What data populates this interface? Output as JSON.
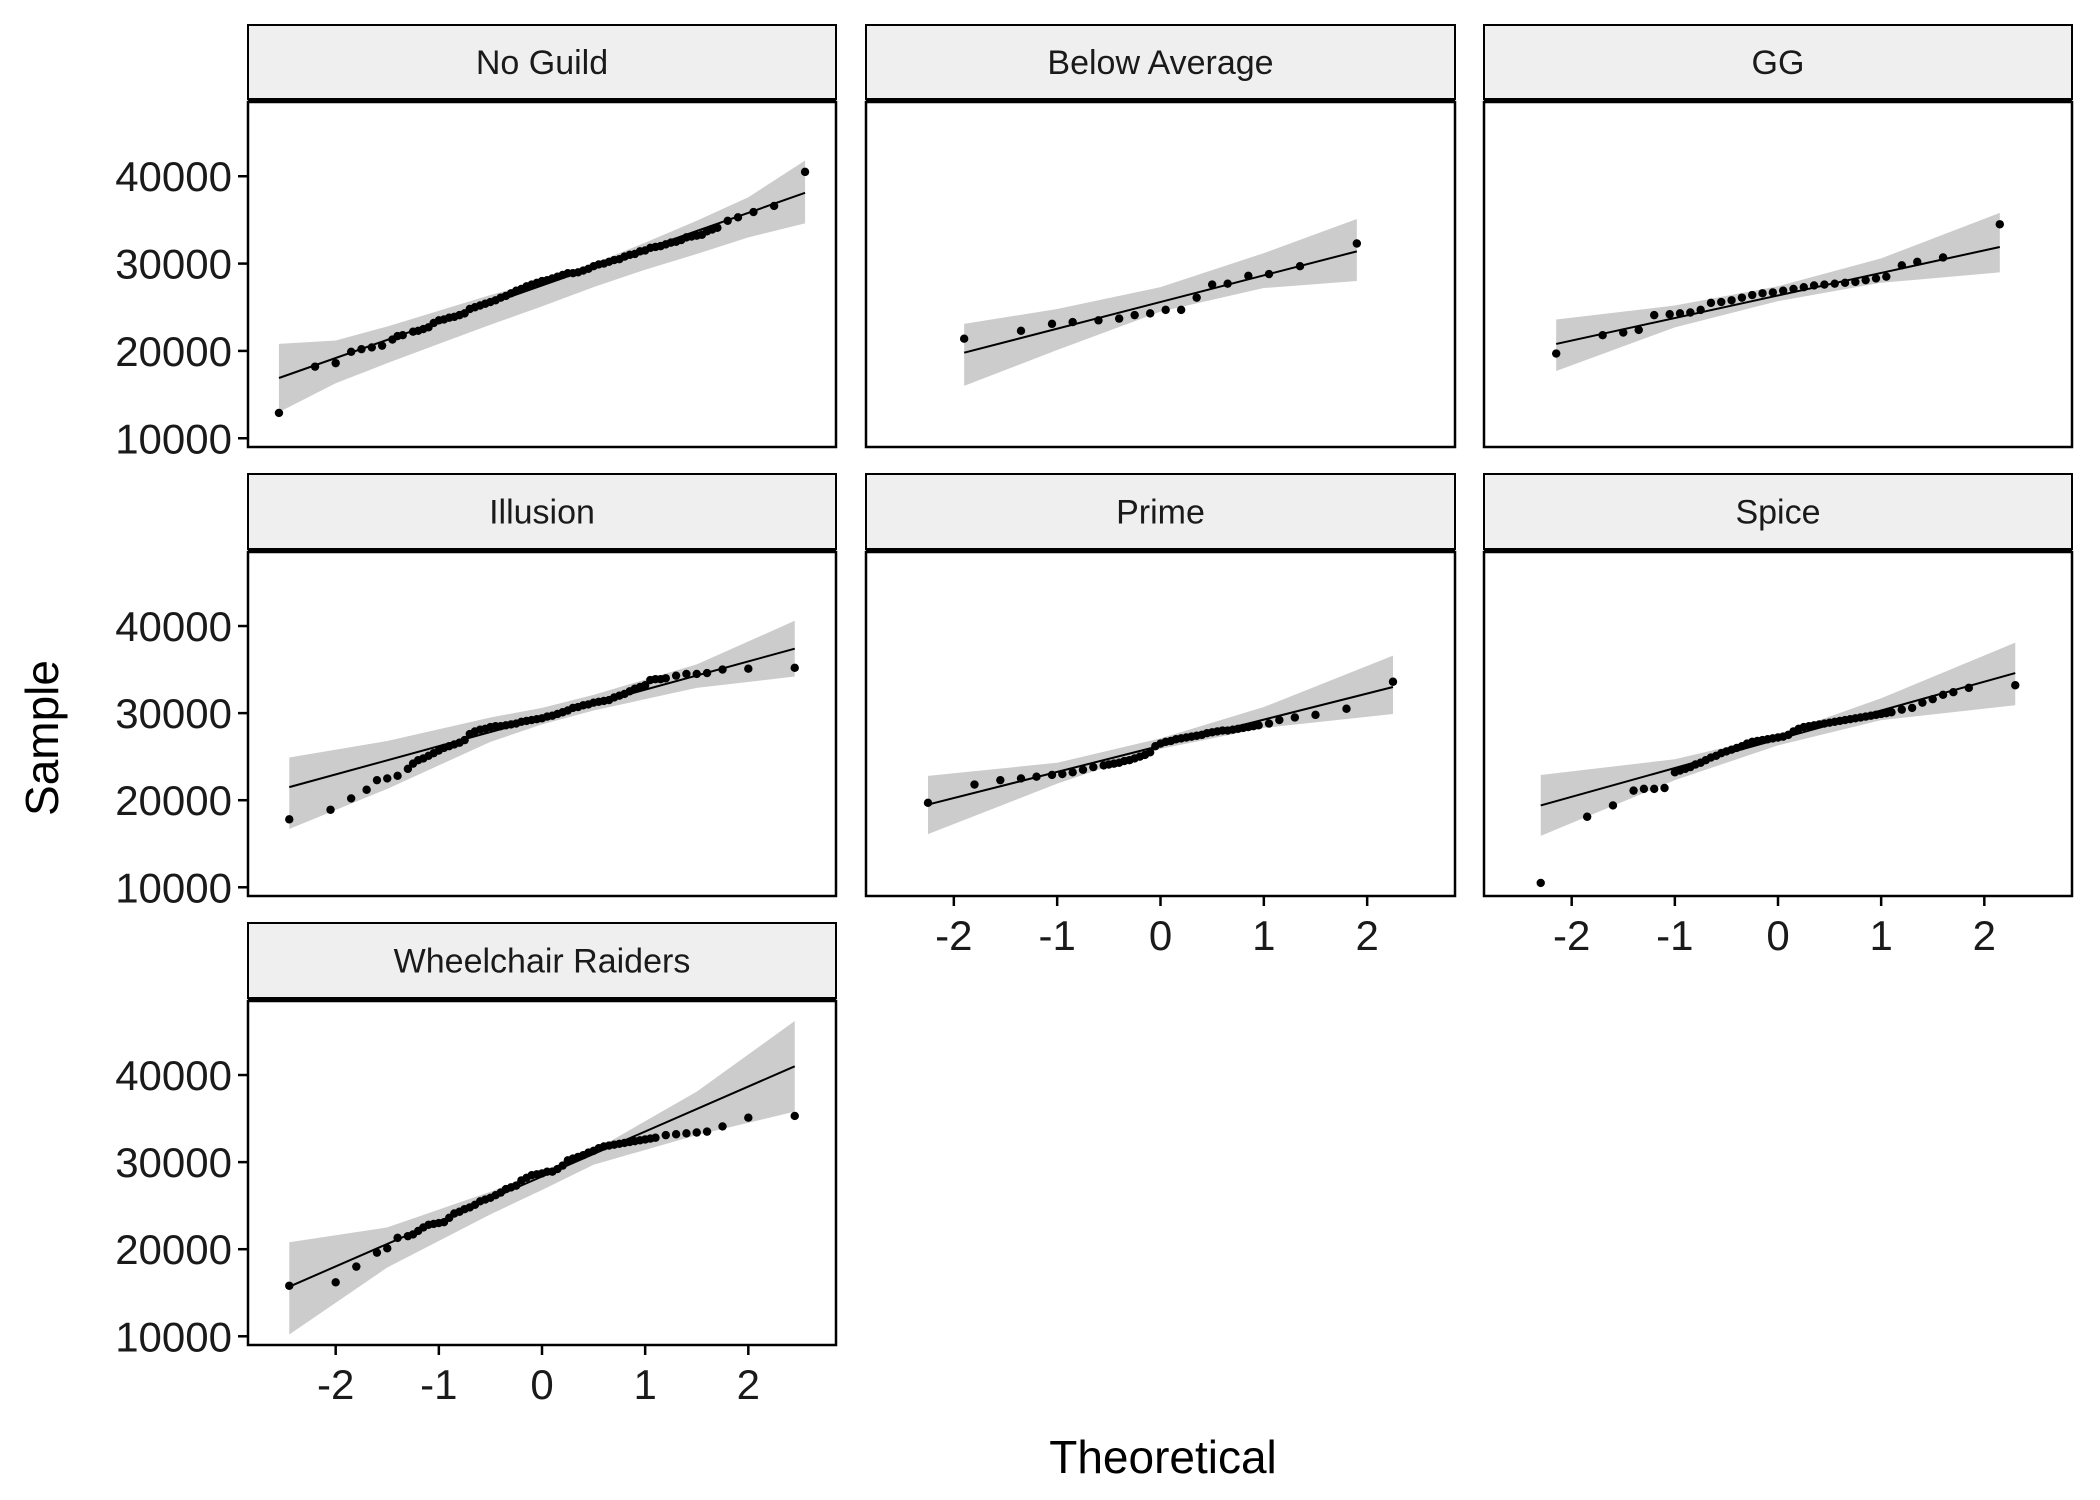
{
  "chart_data": {
    "type": "scatter",
    "subtype": "qq-plot-faceted",
    "xlabel": "Theoretical",
    "ylabel": "Sample",
    "xlim": [
      -2.85,
      2.85
    ],
    "ylim": [
      9000,
      48500
    ],
    "x_ticks": [
      -2,
      -1,
      0,
      1,
      2
    ],
    "x_tick_labels": [
      "-2",
      "-1",
      "0",
      "1",
      "2"
    ],
    "y_ticks": [
      10000,
      20000,
      30000,
      40000
    ],
    "y_tick_labels": [
      "10000",
      "20000",
      "30000",
      "40000"
    ],
    "colors": {
      "points": "#000000",
      "line": "#000000",
      "band": "#cccccc",
      "strip": "#efefef",
      "frame": "#000000"
    },
    "panels": [
      {
        "name": "No Guild",
        "line": {
          "x": [
            -2.55,
            2.55
          ],
          "y": [
            16900,
            38100
          ]
        },
        "band": {
          "x": [
            -2.55,
            -2.0,
            -1.5,
            -1.0,
            -0.5,
            0.0,
            0.5,
            1.0,
            1.5,
            2.0,
            2.55
          ],
          "lower": [
            13000,
            16300,
            18600,
            20800,
            23000,
            25100,
            27300,
            29300,
            31100,
            33000,
            34600
          ],
          "upper": [
            20800,
            21200,
            22800,
            24600,
            26400,
            28000,
            30000,
            32400,
            34900,
            37600,
            41800
          ]
        },
        "points": {
          "x": [
            -2.55,
            -2.2,
            -2.0,
            -1.85,
            -1.75,
            -1.65,
            -1.55,
            -1.45,
            -1.4,
            -1.35,
            -1.25,
            -1.2,
            -1.15,
            -1.1,
            -1.05,
            -1.0,
            -0.95,
            -0.9,
            -0.85,
            -0.8,
            -0.75,
            -0.7,
            -0.65,
            -0.6,
            -0.55,
            -0.5,
            -0.45,
            -0.4,
            -0.35,
            -0.3,
            -0.25,
            -0.2,
            -0.15,
            -0.1,
            -0.05,
            0.0,
            0.05,
            0.1,
            0.15,
            0.2,
            0.25,
            0.3,
            0.35,
            0.4,
            0.45,
            0.5,
            0.55,
            0.6,
            0.65,
            0.7,
            0.75,
            0.8,
            0.85,
            0.9,
            0.95,
            1.0,
            1.05,
            1.1,
            1.15,
            1.2,
            1.25,
            1.3,
            1.35,
            1.4,
            1.45,
            1.5,
            1.55,
            1.6,
            1.65,
            1.7,
            1.8,
            1.9,
            2.05,
            2.25,
            2.55
          ],
          "y": [
            12900,
            18200,
            18600,
            19900,
            20200,
            20400,
            20600,
            21300,
            21700,
            21800,
            22200,
            22300,
            22500,
            22700,
            23200,
            23500,
            23600,
            23800,
            23900,
            24100,
            24300,
            24800,
            25000,
            25200,
            25400,
            25600,
            25800,
            26100,
            26300,
            26600,
            26900,
            27100,
            27400,
            27600,
            27800,
            28000,
            28100,
            28300,
            28500,
            28700,
            28900,
            28900,
            29000,
            29200,
            29400,
            29700,
            29900,
            30000,
            30200,
            30400,
            30500,
            30800,
            31000,
            31100,
            31400,
            31500,
            31800,
            31900,
            32000,
            32200,
            32400,
            32500,
            32700,
            33000,
            33100,
            33200,
            33300,
            33700,
            33900,
            34100,
            34900,
            35300,
            35900,
            36600,
            40500
          ]
        }
      },
      {
        "name": "Below Average",
        "line": {
          "x": [
            -1.9,
            1.9
          ],
          "y": [
            19800,
            31400
          ]
        },
        "band": {
          "x": [
            -1.9,
            -1.0,
            0.0,
            1.0,
            1.9
          ],
          "lower": [
            16000,
            20100,
            24500,
            27200,
            28000
          ],
          "upper": [
            23100,
            24800,
            27300,
            31200,
            35100
          ]
        },
        "points": {
          "x": [
            -1.9,
            -1.35,
            -1.05,
            -0.85,
            -0.6,
            -0.4,
            -0.25,
            -0.1,
            0.05,
            0.2,
            0.35,
            0.5,
            0.65,
            0.85,
            1.05,
            1.35,
            1.9
          ],
          "y": [
            21400,
            22300,
            23100,
            23300,
            23500,
            23700,
            24100,
            24300,
            24700,
            24700,
            26100,
            27600,
            27700,
            28600,
            28800,
            29700,
            32300
          ]
        }
      },
      {
        "name": "GG",
        "line": {
          "x": [
            -2.15,
            2.15
          ],
          "y": [
            20800,
            31900
          ]
        },
        "band": {
          "x": [
            -2.15,
            -1.0,
            0.0,
            1.0,
            2.15
          ],
          "lower": [
            17700,
            22700,
            25700,
            27800,
            29000
          ],
          "upper": [
            23600,
            25200,
            27400,
            30600,
            35800
          ]
        },
        "points": {
          "x": [
            -2.15,
            -1.7,
            -1.5,
            -1.35,
            -1.2,
            -1.05,
            -0.95,
            -0.85,
            -0.75,
            -0.65,
            -0.55,
            -0.45,
            -0.35,
            -0.25,
            -0.15,
            -0.05,
            0.05,
            0.15,
            0.25,
            0.35,
            0.45,
            0.55,
            0.65,
            0.75,
            0.85,
            0.95,
            1.05,
            1.2,
            1.35,
            1.6,
            2.15
          ],
          "y": [
            19700,
            21800,
            22100,
            22400,
            24100,
            24200,
            24300,
            24400,
            24700,
            25500,
            25600,
            25800,
            26100,
            26400,
            26600,
            26700,
            26900,
            27100,
            27300,
            27500,
            27600,
            27700,
            27800,
            27900,
            28100,
            28300,
            28500,
            29800,
            30200,
            30700,
            34500
          ]
        }
      },
      {
        "name": "Illusion",
        "line": {
          "x": [
            -2.45,
            2.45
          ],
          "y": [
            21500,
            37400
          ]
        },
        "band": {
          "x": [
            -2.45,
            -1.5,
            -0.5,
            0.0,
            0.5,
            1.5,
            2.45
          ],
          "lower": [
            16700,
            21300,
            26700,
            28700,
            30300,
            32900,
            34200
          ],
          "upper": [
            24900,
            26800,
            29500,
            30600,
            32100,
            35600,
            40600
          ]
        },
        "points": {
          "x": [
            -2.45,
            -2.05,
            -1.85,
            -1.7,
            -1.6,
            -1.5,
            -1.4,
            -1.3,
            -1.25,
            -1.2,
            -1.15,
            -1.1,
            -1.05,
            -1.0,
            -0.95,
            -0.9,
            -0.85,
            -0.8,
            -0.75,
            -0.7,
            -0.65,
            -0.6,
            -0.55,
            -0.5,
            -0.45,
            -0.4,
            -0.35,
            -0.3,
            -0.25,
            -0.2,
            -0.15,
            -0.1,
            -0.05,
            0.0,
            0.05,
            0.1,
            0.15,
            0.2,
            0.25,
            0.3,
            0.35,
            0.4,
            0.45,
            0.5,
            0.55,
            0.6,
            0.65,
            0.7,
            0.75,
            0.8,
            0.85,
            0.9,
            0.95,
            1.0,
            1.05,
            1.1,
            1.15,
            1.2,
            1.3,
            1.4,
            1.5,
            1.6,
            1.75,
            2.0,
            2.45
          ],
          "y": [
            17800,
            18900,
            20200,
            21200,
            22300,
            22500,
            22800,
            23600,
            24200,
            24600,
            24800,
            25100,
            25400,
            25700,
            26000,
            26200,
            26400,
            26600,
            26900,
            27600,
            27900,
            28100,
            28200,
            28400,
            28500,
            28500,
            28600,
            28700,
            28800,
            29000,
            29100,
            29200,
            29300,
            29400,
            29600,
            29700,
            29900,
            30100,
            30300,
            30600,
            30700,
            30900,
            31000,
            31200,
            31300,
            31400,
            31500,
            31800,
            32000,
            32200,
            32500,
            32800,
            33000,
            33200,
            33800,
            33900,
            33900,
            34000,
            34300,
            34500,
            34500,
            34600,
            35000,
            35100,
            35200
          ]
        }
      },
      {
        "name": "Prime",
        "line": {
          "x": [
            -2.25,
            2.25
          ],
          "y": [
            19500,
            33000
          ]
        },
        "band": {
          "x": [
            -2.25,
            -1.0,
            0.0,
            1.0,
            2.25
          ],
          "lower": [
            16100,
            21900,
            25900,
            28300,
            29900
          ],
          "upper": [
            22800,
            24300,
            27100,
            30700,
            36600
          ]
        },
        "points": {
          "x": [
            -2.25,
            -1.8,
            -1.55,
            -1.35,
            -1.2,
            -1.05,
            -0.95,
            -0.85,
            -0.75,
            -0.65,
            -0.55,
            -0.5,
            -0.45,
            -0.4,
            -0.35,
            -0.3,
            -0.25,
            -0.2,
            -0.15,
            -0.1,
            -0.05,
            0.0,
            0.05,
            0.1,
            0.15,
            0.2,
            0.25,
            0.3,
            0.35,
            0.4,
            0.45,
            0.5,
            0.55,
            0.6,
            0.65,
            0.7,
            0.75,
            0.8,
            0.85,
            0.9,
            0.95,
            1.05,
            1.15,
            1.3,
            1.5,
            1.8,
            2.25
          ],
          "y": [
            19700,
            21800,
            22300,
            22500,
            22700,
            22900,
            23000,
            23200,
            23500,
            23800,
            24000,
            24100,
            24200,
            24300,
            24500,
            24600,
            24800,
            25000,
            25200,
            25500,
            26200,
            26500,
            26700,
            26800,
            27000,
            27100,
            27200,
            27300,
            27400,
            27500,
            27700,
            27800,
            27900,
            28000,
            28000,
            28100,
            28200,
            28300,
            28400,
            28500,
            28600,
            28800,
            29200,
            29500,
            29800,
            30500,
            33600
          ]
        }
      },
      {
        "name": "Spice",
        "line": {
          "x": [
            -2.3,
            2.3
          ],
          "y": [
            19400,
            34600
          ]
        },
        "band": {
          "x": [
            -2.3,
            -1.0,
            0.0,
            1.0,
            2.3
          ],
          "lower": [
            15900,
            22300,
            26300,
            29200,
            30900
          ],
          "upper": [
            22900,
            24700,
            27500,
            31700,
            38100
          ]
        },
        "points": {
          "x": [
            -2.3,
            -1.85,
            -1.6,
            -1.4,
            -1.3,
            -1.2,
            -1.1,
            -1.0,
            -0.95,
            -0.9,
            -0.85,
            -0.8,
            -0.75,
            -0.7,
            -0.65,
            -0.6,
            -0.55,
            -0.5,
            -0.45,
            -0.4,
            -0.35,
            -0.3,
            -0.25,
            -0.2,
            -0.15,
            -0.1,
            -0.05,
            0.0,
            0.05,
            0.1,
            0.15,
            0.2,
            0.25,
            0.3,
            0.35,
            0.4,
            0.45,
            0.5,
            0.55,
            0.6,
            0.65,
            0.7,
            0.75,
            0.8,
            0.85,
            0.9,
            0.95,
            1.0,
            1.05,
            1.1,
            1.2,
            1.3,
            1.4,
            1.5,
            1.6,
            1.7,
            1.85,
            2.3
          ],
          "y": [
            10500,
            18100,
            19400,
            21100,
            21300,
            21300,
            21400,
            23200,
            23400,
            23600,
            23800,
            24100,
            24300,
            24600,
            24900,
            25100,
            25400,
            25600,
            25800,
            26000,
            26200,
            26500,
            26700,
            26800,
            26900,
            27000,
            27100,
            27200,
            27300,
            27500,
            27900,
            28200,
            28400,
            28500,
            28600,
            28700,
            28800,
            28900,
            29000,
            29100,
            29200,
            29300,
            29400,
            29500,
            29600,
            29700,
            29800,
            29900,
            30000,
            30100,
            30400,
            30600,
            31200,
            31600,
            32100,
            32400,
            32900,
            33200
          ]
        }
      },
      {
        "name": "Wheelchair Raiders",
        "line": {
          "x": [
            -2.45,
            2.45
          ],
          "y": [
            15700,
            41000
          ]
        },
        "band": {
          "x": [
            -2.45,
            -1.5,
            -0.5,
            0.0,
            0.5,
            1.5,
            2.45
          ],
          "lower": [
            10200,
            17900,
            24000,
            26800,
            29700,
            33100,
            35800
          ],
          "upper": [
            20800,
            22500,
            26600,
            29000,
            31300,
            38100,
            46200
          ]
        },
        "points": {
          "x": [
            -2.45,
            -2.0,
            -1.8,
            -1.6,
            -1.5,
            -1.4,
            -1.3,
            -1.25,
            -1.2,
            -1.15,
            -1.1,
            -1.05,
            -1.0,
            -0.95,
            -0.9,
            -0.85,
            -0.8,
            -0.75,
            -0.7,
            -0.65,
            -0.6,
            -0.55,
            -0.5,
            -0.45,
            -0.4,
            -0.35,
            -0.3,
            -0.25,
            -0.2,
            -0.15,
            -0.1,
            -0.05,
            0.0,
            0.05,
            0.1,
            0.15,
            0.2,
            0.25,
            0.3,
            0.35,
            0.4,
            0.45,
            0.5,
            0.55,
            0.6,
            0.65,
            0.7,
            0.75,
            0.8,
            0.85,
            0.9,
            0.95,
            1.0,
            1.05,
            1.1,
            1.2,
            1.3,
            1.4,
            1.5,
            1.6,
            1.75,
            2.0,
            2.45
          ],
          "y": [
            15800,
            16200,
            18000,
            19600,
            20100,
            21300,
            21500,
            21700,
            22100,
            22500,
            22800,
            22900,
            23000,
            23100,
            23600,
            24100,
            24300,
            24600,
            24800,
            25100,
            25500,
            25700,
            25900,
            26200,
            26500,
            26900,
            27100,
            27300,
            27900,
            28200,
            28500,
            28600,
            28700,
            28900,
            28900,
            29200,
            29600,
            30200,
            30400,
            30600,
            30800,
            31100,
            31300,
            31600,
            31800,
            31900,
            32000,
            32100,
            32200,
            32300,
            32400,
            32500,
            32600,
            32700,
            32800,
            33100,
            33200,
            33300,
            33400,
            33500,
            34100,
            35100,
            35300
          ]
        }
      }
    ]
  }
}
